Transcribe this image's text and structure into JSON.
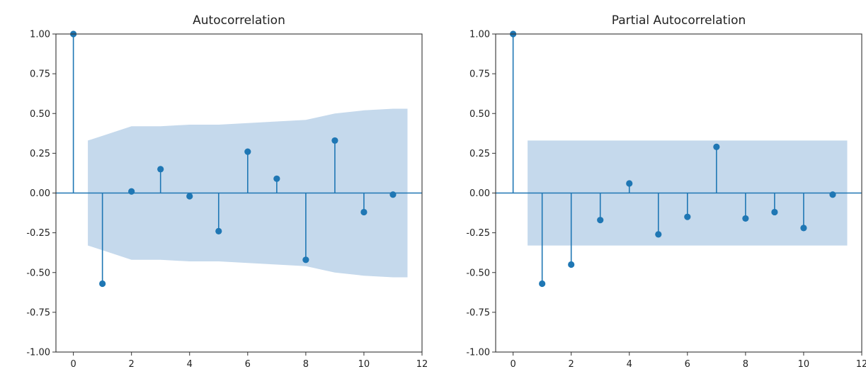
{
  "chart_data": [
    {
      "type": "stem",
      "title": "Autocorrelation",
      "xlabel": "",
      "ylabel": "",
      "xlim": [
        -0.6,
        12
      ],
      "ylim": [
        -1.0,
        1.0
      ],
      "xticks": [
        0,
        2,
        4,
        6,
        8,
        10,
        12
      ],
      "yticks": [
        1.0,
        0.75,
        0.5,
        0.25,
        0.0,
        -0.25,
        -0.5,
        -0.75,
        -1.0
      ],
      "ytick_labels": [
        "1.00",
        "0.75",
        "0.50",
        "0.25",
        "0.00",
        "-0.25",
        "-0.50",
        "-0.75",
        "-1.00"
      ],
      "lags": [
        0,
        1,
        2,
        3,
        4,
        5,
        6,
        7,
        8,
        9,
        10,
        11
      ],
      "values": [
        1.0,
        -0.57,
        0.01,
        0.15,
        -0.02,
        -0.24,
        0.26,
        0.09,
        -0.42,
        0.33,
        -0.12,
        -0.01
      ],
      "confidence_band": {
        "x": [
          0.5,
          1,
          2,
          3,
          4,
          5,
          6,
          7,
          8,
          9,
          10,
          11,
          11.5
        ],
        "upper": [
          0.33,
          0.36,
          0.42,
          0.42,
          0.43,
          0.43,
          0.44,
          0.45,
          0.46,
          0.5,
          0.52,
          0.53,
          0.53
        ],
        "lower": [
          -0.33,
          -0.36,
          -0.42,
          -0.42,
          -0.43,
          -0.43,
          -0.44,
          -0.45,
          -0.46,
          -0.5,
          -0.52,
          -0.53,
          -0.53
        ]
      },
      "colors": {
        "stem": "#1f77b4",
        "band": "#c5d9ec"
      }
    },
    {
      "type": "stem",
      "title": "Partial Autocorrelation",
      "xlabel": "",
      "ylabel": "",
      "xlim": [
        -0.6,
        12
      ],
      "ylim": [
        -1.0,
        1.0
      ],
      "xticks": [
        0,
        2,
        4,
        6,
        8,
        10,
        12
      ],
      "yticks": [
        1.0,
        0.75,
        0.5,
        0.25,
        0.0,
        -0.25,
        -0.5,
        -0.75,
        -1.0
      ],
      "ytick_labels": [
        "1.00",
        "0.75",
        "0.50",
        "0.25",
        "0.00",
        "-0.25",
        "-0.50",
        "-0.75",
        "-1.00"
      ],
      "lags": [
        0,
        1,
        2,
        3,
        4,
        5,
        6,
        7,
        8,
        9,
        10,
        11
      ],
      "values": [
        1.0,
        -0.57,
        -0.45,
        -0.17,
        0.06,
        -0.26,
        -0.15,
        0.29,
        -0.16,
        -0.12,
        -0.22,
        -0.01
      ],
      "confidence_band": {
        "x": [
          0.5,
          11.5
        ],
        "upper": [
          0.33,
          0.33
        ],
        "lower": [
          -0.33,
          -0.33
        ]
      },
      "colors": {
        "stem": "#1f77b4",
        "band": "#c5d9ec"
      }
    }
  ]
}
